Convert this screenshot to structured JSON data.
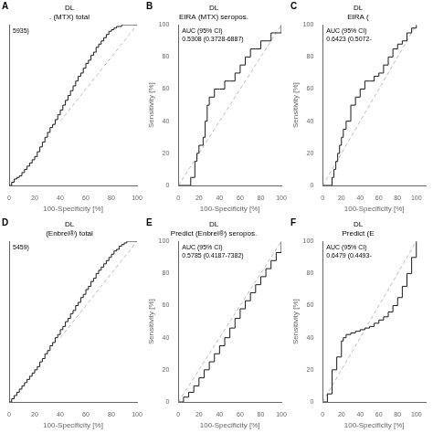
{
  "chart_data": [
    {
      "type": "line",
      "panel_label": "A",
      "title": [
        "DL",
        ". (MTX) total"
      ],
      "annotation": "5935)",
      "x_label": "100-Specificity [%]",
      "series": [
        {
          "type": "step",
          "color": "#1a1a1a",
          "line_style": "solid",
          "x": [
            0,
            2,
            4,
            6,
            8,
            10,
            12,
            14,
            16,
            18,
            20,
            22,
            24,
            26,
            28,
            30,
            32,
            34,
            36,
            38,
            40,
            42,
            44,
            46,
            48,
            50,
            52,
            54,
            56,
            58,
            60,
            62,
            64,
            66,
            68,
            70,
            72,
            74,
            76,
            78,
            80,
            82,
            84,
            86,
            88,
            90,
            92,
            94,
            96,
            98,
            100
          ],
          "values": [
            0,
            2,
            4,
            5,
            6,
            8,
            10,
            12,
            14,
            16,
            18,
            21,
            24,
            27,
            30,
            33,
            36,
            38,
            41,
            44,
            47,
            50,
            53,
            56,
            59,
            62,
            65,
            68,
            70,
            73,
            76,
            78,
            81,
            83,
            86,
            88,
            90,
            92,
            94,
            96,
            97,
            98,
            99,
            99,
            100,
            100,
            100,
            100,
            100,
            100,
            100
          ]
        },
        {
          "type": "line",
          "color": "#bbbbbb",
          "line_style": "dashed",
          "x": [
            40,
            100
          ],
          "values": [
            40,
            100
          ]
        }
      ],
      "xlim": [
        0,
        100
      ],
      "xticks": [
        0,
        20,
        40,
        60,
        80,
        100
      ],
      "ylim": [
        0,
        100
      ],
      "yticks": [
        20,
        40,
        60,
        80,
        100
      ],
      "grid": false,
      "tick_labels": "x"
    },
    {
      "type": "line",
      "panel_label": "B",
      "title": [
        "DL",
        "EIRA (MTX) seropos."
      ],
      "annotation": "AUC (95% CI)\n0.5308 (0.3728-6887)",
      "x_label": "100-Specificity [%]",
      "y_label": "Sensitivity [%]",
      "series": [
        {
          "type": "step",
          "color": "#1a1a1a",
          "line_style": "solid",
          "x": [
            0,
            5,
            10,
            12,
            14,
            16,
            18,
            20,
            22,
            24,
            26,
            28,
            30,
            35,
            40,
            45,
            50,
            55,
            60,
            65,
            70,
            75,
            80,
            85,
            90,
            95,
            100
          ],
          "values": [
            0,
            0,
            0,
            5,
            5,
            15,
            20,
            25,
            25,
            30,
            40,
            50,
            55,
            60,
            60,
            65,
            65,
            70,
            75,
            80,
            85,
            85,
            90,
            90,
            95,
            95,
            100
          ]
        },
        {
          "type": "line",
          "color": "#bbbbbb",
          "line_style": "dashed",
          "x": [
            0,
            100
          ],
          "values": [
            0,
            100
          ]
        }
      ],
      "xlim": [
        0,
        100
      ],
      "xticks": [
        0,
        20,
        40,
        60,
        80,
        100
      ],
      "ylim": [
        0,
        100
      ],
      "yticks": [
        0,
        20,
        40,
        60,
        80,
        100
      ],
      "grid": false,
      "tick_labels": true
    },
    {
      "type": "line",
      "panel_label": "C",
      "title": [
        "DL",
        "EIRA ("
      ],
      "annotation": "AUC (95% CI)\n0.6423 (0.5072-",
      "x_label": "100-Specificity [%]",
      "y_label": "Sensitivity [%]",
      "series": [
        {
          "type": "step",
          "color": "#1a1a1a",
          "line_style": "solid",
          "x": [
            0,
            5,
            10,
            12,
            14,
            16,
            18,
            20,
            22,
            25,
            30,
            35,
            40,
            45,
            50,
            55,
            60,
            65,
            70,
            75,
            80,
            85,
            90,
            95,
            100
          ],
          "values": [
            0,
            0,
            5,
            10,
            15,
            20,
            25,
            30,
            35,
            40,
            50,
            55,
            60,
            65,
            65,
            68,
            70,
            75,
            80,
            85,
            88,
            90,
            95,
            98,
            100
          ]
        },
        {
          "type": "line",
          "color": "#bbbbbb",
          "line_style": "dashed",
          "x": [
            0,
            100
          ],
          "values": [
            0,
            100
          ]
        }
      ],
      "xlim": [
        0,
        110
      ],
      "xticks": [
        0,
        20,
        40,
        60,
        80,
        100
      ],
      "ylim": [
        0,
        100
      ],
      "yticks": [
        0,
        20,
        40,
        60,
        80,
        100
      ],
      "grid": false,
      "tick_labels": true
    },
    {
      "type": "line",
      "panel_label": "D",
      "title": [
        "DL",
        "(Enbrel®) total"
      ],
      "annotation": "5459)",
      "x_label": "100-Specificity [%]",
      "series": [
        {
          "type": "step",
          "color": "#1a1a1a",
          "line_style": "solid",
          "x": [
            0,
            2,
            4,
            6,
            8,
            10,
            12,
            14,
            16,
            18,
            20,
            22,
            24,
            26,
            28,
            30,
            32,
            34,
            36,
            38,
            40,
            42,
            44,
            46,
            48,
            50,
            52,
            54,
            56,
            58,
            60,
            62,
            64,
            66,
            68,
            70,
            72,
            74,
            76,
            78,
            80,
            82,
            84,
            86,
            88,
            90,
            92,
            94,
            96,
            98,
            100
          ],
          "values": [
            0,
            2,
            4,
            6,
            8,
            10,
            12,
            14,
            16,
            18,
            20,
            22,
            25,
            27,
            30,
            32,
            35,
            37,
            40,
            42,
            45,
            47,
            50,
            52,
            55,
            57,
            60,
            62,
            65,
            67,
            70,
            72,
            75,
            77,
            80,
            82,
            84,
            86,
            88,
            90,
            92,
            94,
            95,
            97,
            98,
            99,
            100,
            100,
            100,
            100,
            100
          ]
        },
        {
          "type": "line",
          "color": "#bbbbbb",
          "line_style": "dashed",
          "x": [
            40,
            100
          ],
          "values": [
            40,
            100
          ]
        }
      ],
      "xlim": [
        0,
        100
      ],
      "xticks": [
        0,
        20,
        40,
        60,
        80,
        100
      ],
      "ylim": [
        0,
        100
      ],
      "yticks": [
        20,
        40,
        60,
        80,
        100
      ],
      "grid": false,
      "tick_labels": "x"
    },
    {
      "type": "line",
      "panel_label": "E",
      "title": [
        "DL",
        "Predict (Enbrel®) seropos."
      ],
      "annotation": "AUC (95% CI)\n0.5785 (0.4187-7382)",
      "x_label": "100-Specificity [%]",
      "y_label": "Sensitivity [%]",
      "series": [
        {
          "type": "step",
          "color": "#1a1a1a",
          "line_style": "solid",
          "x": [
            0,
            5,
            10,
            15,
            20,
            25,
            30,
            35,
            40,
            45,
            50,
            55,
            60,
            65,
            70,
            75,
            80,
            85,
            90,
            95,
            100
          ],
          "values": [
            0,
            3,
            6,
            10,
            15,
            20,
            25,
            30,
            35,
            40,
            46,
            52,
            58,
            63,
            68,
            73,
            78,
            83,
            88,
            93,
            100
          ]
        },
        {
          "type": "line",
          "color": "#bbbbbb",
          "line_style": "dashed",
          "x": [
            0,
            100
          ],
          "values": [
            0,
            100
          ]
        }
      ],
      "xlim": [
        0,
        100
      ],
      "xticks": [
        0,
        20,
        40,
        60,
        80,
        100
      ],
      "ylim": [
        0,
        100
      ],
      "yticks": [
        0,
        20,
        40,
        60,
        80,
        100
      ],
      "grid": false,
      "tick_labels": true
    },
    {
      "type": "line",
      "panel_label": "F",
      "title": [
        "DL",
        "Predict (E"
      ],
      "annotation": "AUC (95% CI)\n0.6479 (0.4493-",
      "x_label": "100-Specificity [%]",
      "y_label": "Sensitivity [%]",
      "series": [
        {
          "type": "step",
          "color": "#1a1a1a",
          "line_style": "solid",
          "x": [
            0,
            5,
            10,
            15,
            20,
            22,
            25,
            30,
            35,
            40,
            45,
            50,
            55,
            60,
            65,
            70,
            75,
            80,
            85,
            90,
            95,
            100
          ],
          "values": [
            0,
            5,
            20,
            28,
            38,
            40,
            42,
            43,
            44,
            45,
            46,
            47,
            49,
            51,
            53,
            56,
            60,
            65,
            72,
            80,
            90,
            100
          ]
        },
        {
          "type": "line",
          "color": "#bbbbbb",
          "line_style": "dashed",
          "x": [
            0,
            100
          ],
          "values": [
            0,
            100
          ]
        }
      ],
      "xlim": [
        0,
        110
      ],
      "xticks": [
        0,
        20,
        40,
        60,
        80,
        100
      ],
      "ylim": [
        0,
        100
      ],
      "yticks": [
        0,
        20,
        40,
        60,
        80,
        100
      ],
      "grid": false,
      "tick_labels": true
    }
  ]
}
